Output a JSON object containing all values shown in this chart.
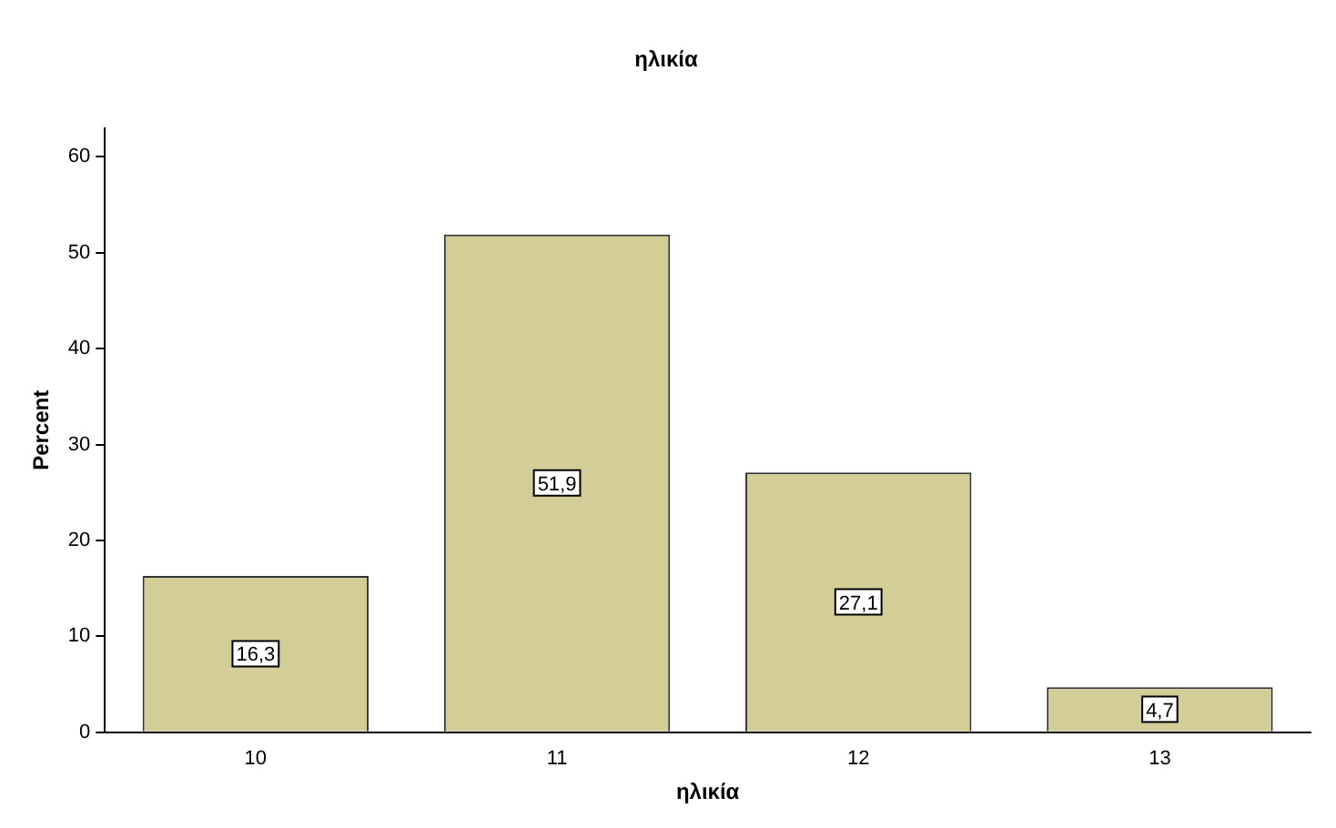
{
  "chart_data": {
    "type": "bar",
    "title": "ηλικία",
    "xlabel": "ηλικία",
    "ylabel": "Percent",
    "categories": [
      "10",
      "11",
      "12",
      "13"
    ],
    "series": [
      {
        "color": "#d3cd97",
        "values": [
          16.3,
          51.9,
          27.1,
          4.7
        ],
        "value_labels": [
          "16,3",
          "51,9",
          "27,1",
          "4,7"
        ]
      }
    ],
    "ylim": [
      0,
      63
    ],
    "yticks": [
      0,
      10,
      20,
      30,
      40,
      50,
      60
    ],
    "grid": false,
    "legend": false
  }
}
